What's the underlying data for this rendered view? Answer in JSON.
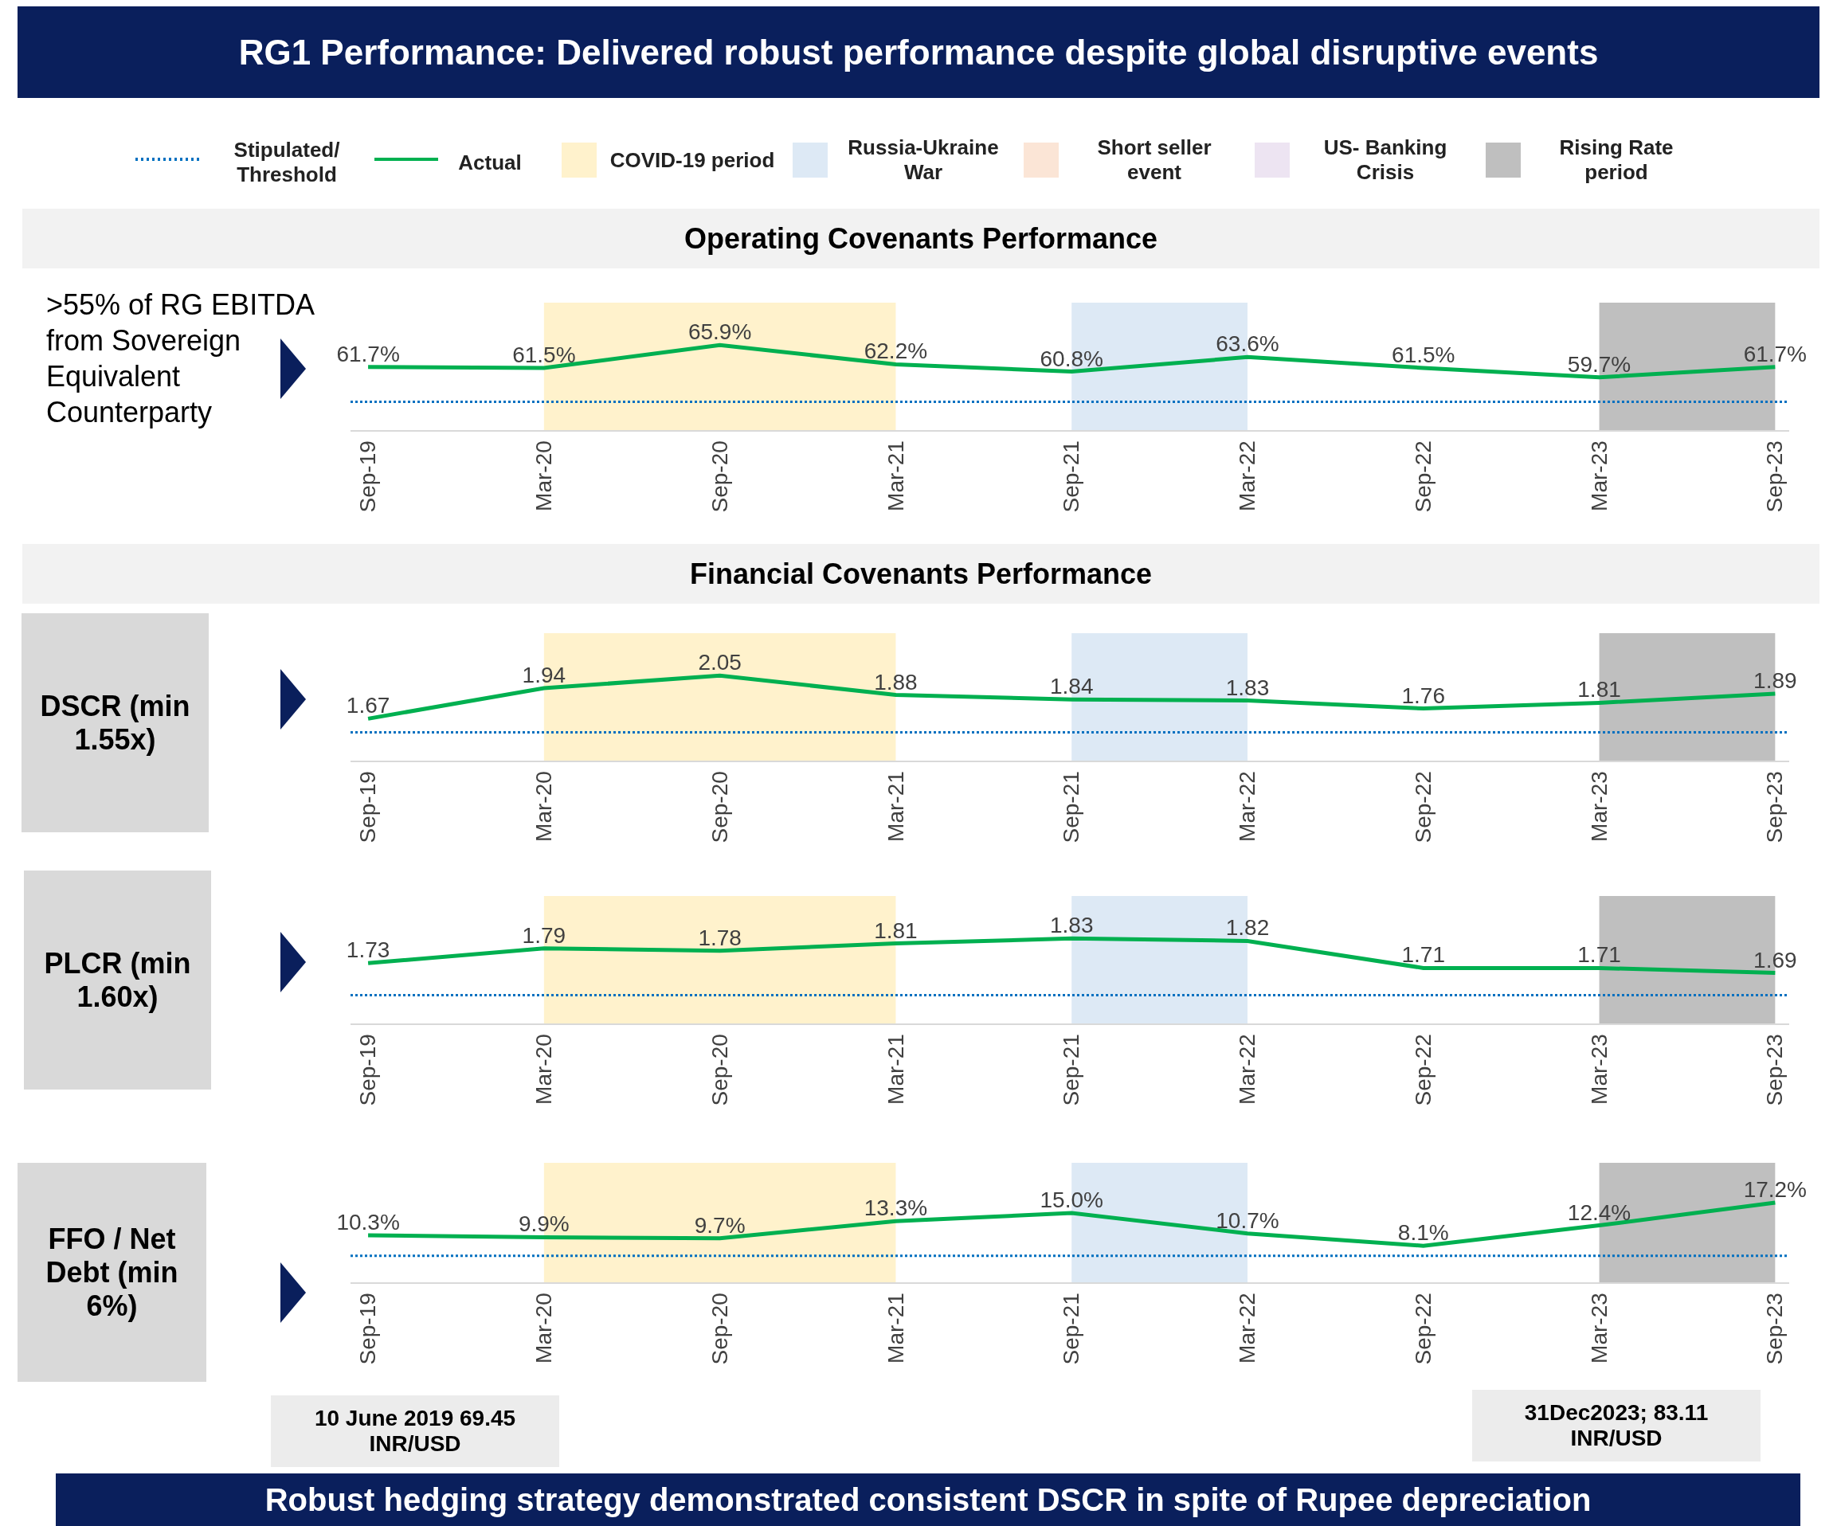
{
  "chart_data": [
    {
      "type": "line",
      "title": "RG1 Performance: Delivered robust performance despite global disruptive events",
      "subtitle": "Operating Covenants Performance",
      "ylabel": ">55% of RG EBITDA from Sovereign Equivalent Counterparty",
      "legend": "top",
      "categories": [
        "Sep-19",
        "Mar-20",
        "Sep-20",
        "Mar-21",
        "Sep-21",
        "Mar-22",
        "Sep-22",
        "Mar-23",
        "Sep-23"
      ],
      "series": [
        {
          "name": "Actual",
          "color": "#00b050",
          "values": [
            61.7,
            61.5,
            65.9,
            62.2,
            60.8,
            63.6,
            61.5,
            59.7,
            61.7
          ],
          "value_labels": [
            "61.7%",
            "61.5%",
            "65.9%",
            "62.2%",
            "60.8%",
            "63.6%",
            "61.5%",
            "59.7%",
            "61.7%"
          ]
        }
      ],
      "ref_lines": [
        {
          "axis": "y",
          "value": 55,
          "label": "Stipulated/ Threshold",
          "color": "#0070c0",
          "line_style": "dotted"
        }
      ],
      "bands": [
        {
          "axis": "x",
          "from": "Mar-20",
          "to": "Mar-21",
          "label": "COVID-19 period",
          "color": "#fff2cc"
        },
        {
          "axis": "x",
          "from": "Sep-21",
          "to": "Mar-22",
          "label": "Russia-Ukraine War",
          "color": "#dde9f5"
        },
        {
          "axis": "x",
          "from": "Mar-23",
          "to": "Sep-23",
          "label": "Rising Rate period",
          "color": "#bfbfbf"
        }
      ],
      "annotations": [
        "Short seller event",
        "US- Banking Crisis"
      ]
    },
    {
      "type": "line",
      "title": "Financial Covenants Performance",
      "ylabel": "DSCR (min 1.55x)",
      "data_labels": true,
      "categories": [
        "Sep-19",
        "Mar-20",
        "Sep-20",
        "Mar-21",
        "Sep-21",
        "Mar-22",
        "Sep-22",
        "Mar-23",
        "Sep-23"
      ],
      "series": [
        {
          "color": "#00b050",
          "values": [
            1.67,
            1.94,
            2.05,
            1.88,
            1.84,
            1.83,
            1.76,
            1.81,
            1.89
          ]
        }
      ],
      "ref_lines": [
        {
          "axis": "y",
          "value": 1.55,
          "color": "#0070c0",
          "line_style": "dotted"
        }
      ],
      "bands": [
        {
          "axis": "x",
          "from": "Mar-20",
          "to": "Mar-21",
          "color": "#fff2cc"
        },
        {
          "axis": "x",
          "from": "Sep-21",
          "to": "Mar-22",
          "color": "#dde9f5"
        },
        {
          "axis": "x",
          "from": "Mar-23",
          "to": "Sep-23",
          "color": "#bfbfbf"
        }
      ]
    },
    {
      "type": "line",
      "ylabel": "PLCR (min 1.60x)",
      "data_labels": true,
      "categories": [
        "Sep-19",
        "Mar-20",
        "Sep-20",
        "Mar-21",
        "Sep-21",
        "Mar-22",
        "Sep-22",
        "Mar-23",
        "Sep-23"
      ],
      "series": [
        {
          "color": "#00b050",
          "values": [
            1.73,
            1.79,
            1.78,
            1.81,
            1.83,
            1.82,
            1.71,
            1.71,
            1.69
          ]
        }
      ],
      "ref_lines": [
        {
          "axis": "y",
          "value": 1.6,
          "color": "#0070c0",
          "line_style": "dotted"
        }
      ],
      "bands": [
        {
          "axis": "x",
          "from": "Mar-20",
          "to": "Mar-21",
          "color": "#fff2cc"
        },
        {
          "axis": "x",
          "from": "Sep-21",
          "to": "Mar-22",
          "color": "#dde9f5"
        },
        {
          "axis": "x",
          "from": "Mar-23",
          "to": "Sep-23",
          "color": "#bfbfbf"
        }
      ]
    },
    {
      "type": "line",
      "ylabel": "FFO / Net Debt (min 6%)",
      "categories": [
        "Sep-19",
        "Mar-20",
        "Sep-20",
        "Mar-21",
        "Sep-21",
        "Mar-22",
        "Sep-22",
        "Mar-23",
        "Sep-23"
      ],
      "series": [
        {
          "color": "#00b050",
          "values": [
            10.3,
            9.9,
            9.7,
            13.3,
            15.0,
            10.7,
            8.1,
            12.4,
            17.2
          ],
          "value_labels": [
            "10.3%",
            "9.9%",
            "9.7%",
            "13.3%",
            "15.0%",
            "10.7%",
            "8.1%",
            "12.4%",
            "17.2%"
          ]
        }
      ],
      "ref_lines": [
        {
          "axis": "y",
          "value": 6,
          "color": "#0070c0",
          "line_style": "dotted"
        }
      ],
      "bands": [
        {
          "axis": "x",
          "from": "Mar-20",
          "to": "Mar-21",
          "color": "#fff2cc"
        },
        {
          "axis": "x",
          "from": "Sep-21",
          "to": "Mar-22",
          "color": "#dde9f5"
        },
        {
          "axis": "x",
          "from": "Mar-23",
          "to": "Sep-23",
          "color": "#bfbfbf"
        }
      ],
      "annotations": [
        "10 June 2019 69.45 INR/USD",
        "31Dec2023; 83.11 INR/USD",
        "Robust hedging strategy demonstrated consistent DSCR in spite of Rupee depreciation"
      ]
    }
  ]
}
